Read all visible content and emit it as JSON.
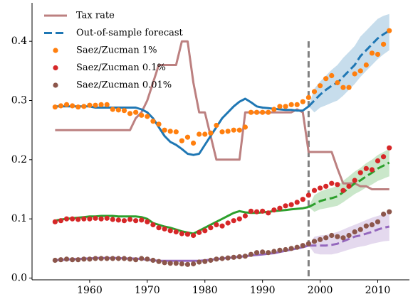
{
  "chart_data": {
    "type": "line",
    "x": [
      1954,
      1955,
      1956,
      1957,
      1958,
      1959,
      1960,
      1961,
      1962,
      1963,
      1964,
      1965,
      1966,
      1967,
      1968,
      1969,
      1970,
      1971,
      1972,
      1973,
      1974,
      1975,
      1976,
      1977,
      1978,
      1979,
      1980,
      1981,
      1982,
      1983,
      1984,
      1985,
      1986,
      1987,
      1988,
      1989,
      1990,
      1991,
      1992,
      1993,
      1994,
      1995,
      1996,
      1997,
      1998,
      1999,
      2000,
      2001,
      2002,
      2003,
      2004,
      2005,
      2006,
      2007,
      2008,
      2009,
      2010,
      2011,
      2012
    ],
    "xlim": [
      1950,
      2015.5
    ],
    "ylim": [
      -0.003,
      0.465
    ],
    "xticks": [
      1960,
      1970,
      1980,
      1990,
      2000,
      2010
    ],
    "yticks": [
      {
        "value": 0,
        "label": "0.0"
      },
      0.1,
      0.2,
      0.3,
      0.4
    ],
    "legend": "upper left",
    "vline": {
      "x": 1998,
      "ymax": 0.4,
      "color": "#808080"
    },
    "series": [
      {
        "name": "Tax rate",
        "kind": "line",
        "color": "#bc8080",
        "values": [
          0.25,
          0.25,
          0.25,
          0.25,
          0.25,
          0.25,
          0.25,
          0.25,
          0.25,
          0.25,
          0.25,
          0.25,
          0.25,
          0.25,
          0.27,
          0.28,
          0.3,
          0.33,
          0.36,
          0.36,
          0.36,
          0.36,
          0.4,
          0.4,
          0.33,
          0.28,
          0.28,
          0.24,
          0.2,
          0.2,
          0.2,
          0.2,
          0.2,
          0.28,
          0.28,
          0.28,
          0.28,
          0.28,
          0.28,
          0.28,
          0.28,
          0.28,
          0.285,
          0.28,
          0.213,
          0.213,
          0.213,
          0.213,
          0.213,
          0.185,
          0.16,
          0.16,
          0.16,
          0.155,
          0.155,
          0.15,
          0.15,
          0.15,
          0.15
        ]
      },
      {
        "name": "Out-of-sample forecast",
        "kind": "forecast",
        "color": "#1f77b4",
        "band": "rgba(31,119,180,0.25)",
        "values": [
          null,
          null,
          null,
          null,
          null,
          null,
          null,
          null,
          null,
          null,
          null,
          null,
          null,
          null,
          null,
          null,
          null,
          null,
          null,
          null,
          null,
          null,
          null,
          null,
          null,
          null,
          null,
          null,
          null,
          null,
          null,
          null,
          null,
          null,
          null,
          null,
          null,
          null,
          null,
          null,
          null,
          null,
          null,
          null,
          0.29,
          0.3,
          0.31,
          0.318,
          0.325,
          0.33,
          0.34,
          0.35,
          0.36,
          0.375,
          0.385,
          0.395,
          0.405,
          0.412,
          0.418
        ],
        "lower": [
          null,
          null,
          null,
          null,
          null,
          null,
          null,
          null,
          null,
          null,
          null,
          null,
          null,
          null,
          null,
          null,
          null,
          null,
          null,
          null,
          null,
          null,
          null,
          null,
          null,
          null,
          null,
          null,
          null,
          null,
          null,
          null,
          null,
          null,
          null,
          null,
          null,
          null,
          null,
          null,
          null,
          null,
          null,
          null,
          0.29,
          0.28,
          0.288,
          0.292,
          0.296,
          0.3,
          0.308,
          0.318,
          0.328,
          0.34,
          0.35,
          0.36,
          0.37,
          0.378,
          0.385
        ],
        "upper": [
          null,
          null,
          null,
          null,
          null,
          null,
          null,
          null,
          null,
          null,
          null,
          null,
          null,
          null,
          null,
          null,
          null,
          null,
          null,
          null,
          null,
          null,
          null,
          null,
          null,
          null,
          null,
          null,
          null,
          null,
          null,
          null,
          null,
          null,
          null,
          null,
          null,
          null,
          null,
          null,
          null,
          null,
          null,
          null,
          0.29,
          0.32,
          0.332,
          0.342,
          0.352,
          0.36,
          0.372,
          0.382,
          0.392,
          0.408,
          0.418,
          0.428,
          0.438,
          0.443,
          0.446
        ]
      },
      {
        "name": "Saez/Zucman 1%",
        "kind": "scatter",
        "color": "#ff7f0e",
        "values": [
          0.289,
          0.291,
          0.293,
          0.291,
          0.289,
          0.29,
          0.292,
          0.292,
          0.293,
          0.293,
          0.285,
          0.284,
          0.283,
          0.278,
          0.28,
          0.275,
          0.273,
          0.265,
          0.26,
          0.25,
          0.248,
          0.247,
          0.232,
          0.238,
          0.228,
          0.243,
          0.243,
          0.245,
          0.258,
          0.247,
          0.248,
          0.25,
          0.25,
          0.255,
          0.28,
          0.28,
          0.28,
          0.28,
          0.285,
          0.29,
          0.29,
          0.293,
          0.293,
          0.298,
          0.305,
          0.315,
          0.325,
          0.337,
          0.342,
          0.33,
          0.322,
          0.322,
          0.345,
          0.35,
          0.36,
          0.38,
          0.378,
          0.395,
          0.418
        ]
      },
      {
        "name": "Saez/Zucman 0.1%",
        "kind": "scatter",
        "color": "#d62728",
        "values": [
          0.095,
          0.097,
          0.1,
          0.1,
          0.099,
          0.1,
          0.1,
          0.101,
          0.1,
          0.101,
          0.099,
          0.098,
          0.097,
          0.099,
          0.097,
          0.098,
          0.095,
          0.09,
          0.085,
          0.083,
          0.08,
          0.078,
          0.075,
          0.074,
          0.072,
          0.077,
          0.08,
          0.085,
          0.09,
          0.088,
          0.093,
          0.097,
          0.1,
          0.105,
          0.113,
          0.112,
          0.113,
          0.11,
          0.115,
          0.118,
          0.122,
          0.124,
          0.128,
          0.133,
          0.14,
          0.148,
          0.152,
          0.155,
          0.16,
          0.158,
          0.148,
          0.155,
          0.165,
          0.178,
          0.185,
          0.183,
          0.198,
          0.205,
          0.22
        ]
      },
      {
        "name": "Saez/Zucman 0.01%",
        "kind": "scatter",
        "color": "#8c564b",
        "values": [
          0.03,
          0.031,
          0.032,
          0.031,
          0.031,
          0.032,
          0.032,
          0.033,
          0.033,
          0.033,
          0.033,
          0.033,
          0.033,
          0.032,
          0.031,
          0.033,
          0.032,
          0.03,
          0.028,
          0.026,
          0.025,
          0.025,
          0.024,
          0.023,
          0.024,
          0.027,
          0.028,
          0.03,
          0.032,
          0.033,
          0.034,
          0.035,
          0.036,
          0.037,
          0.04,
          0.043,
          0.044,
          0.043,
          0.045,
          0.047,
          0.048,
          0.05,
          0.052,
          0.055,
          0.058,
          0.062,
          0.065,
          0.068,
          0.072,
          0.07,
          0.068,
          0.072,
          0.078,
          0.082,
          0.088,
          0.09,
          0.095,
          0.108,
          0.112
        ]
      },
      {
        "kind": "line",
        "color": "#1f77b4",
        "values": [
          0.29,
          0.29,
          0.29,
          0.29,
          0.29,
          0.29,
          0.29,
          0.288,
          0.288,
          0.288,
          0.288,
          0.288,
          0.288,
          0.288,
          0.288,
          0.285,
          0.28,
          0.27,
          0.255,
          0.24,
          0.23,
          0.225,
          0.218,
          0.21,
          0.208,
          0.21,
          0.225,
          0.24,
          0.255,
          0.27,
          0.28,
          0.29,
          0.298,
          0.303,
          0.297,
          0.29,
          0.288,
          0.287,
          0.286,
          0.285,
          0.284,
          0.284,
          0.283,
          0.283,
          0.29,
          null,
          null,
          null,
          null,
          null,
          null,
          null,
          null,
          null,
          null,
          null,
          null,
          null,
          null
        ]
      },
      {
        "kind": "line",
        "color": "#2ca02c",
        "values": [
          0.097,
          0.099,
          0.1,
          0.101,
          0.102,
          0.103,
          0.104,
          0.104,
          0.105,
          0.105,
          0.105,
          0.104,
          0.104,
          0.104,
          0.104,
          0.103,
          0.1,
          0.093,
          0.09,
          0.087,
          0.085,
          0.082,
          0.079,
          0.077,
          0.075,
          0.08,
          0.085,
          0.09,
          0.095,
          0.1,
          0.105,
          0.11,
          0.113,
          0.111,
          0.11,
          0.11,
          0.111,
          0.112,
          0.113,
          0.114,
          0.115,
          0.116,
          0.117,
          0.118,
          0.12,
          null,
          null,
          null,
          null,
          null,
          null,
          null,
          null,
          null,
          null,
          null,
          null,
          null,
          null
        ]
      },
      {
        "kind": "forecast",
        "color": "#2ca02c",
        "band": "rgba(44,160,44,0.25)",
        "values": [
          null,
          null,
          null,
          null,
          null,
          null,
          null,
          null,
          null,
          null,
          null,
          null,
          null,
          null,
          null,
          null,
          null,
          null,
          null,
          null,
          null,
          null,
          null,
          null,
          null,
          null,
          null,
          null,
          null,
          null,
          null,
          null,
          null,
          null,
          null,
          null,
          null,
          null,
          null,
          null,
          null,
          null,
          null,
          null,
          0.12,
          0.125,
          0.13,
          0.133,
          0.135,
          0.138,
          0.145,
          0.152,
          0.16,
          0.165,
          0.172,
          0.178,
          0.185,
          0.19,
          0.195
        ],
        "lower": [
          null,
          null,
          null,
          null,
          null,
          null,
          null,
          null,
          null,
          null,
          null,
          null,
          null,
          null,
          null,
          null,
          null,
          null,
          null,
          null,
          null,
          null,
          null,
          null,
          null,
          null,
          null,
          null,
          null,
          null,
          null,
          null,
          null,
          null,
          null,
          null,
          null,
          null,
          null,
          null,
          null,
          null,
          null,
          null,
          0.12,
          0.112,
          0.116,
          0.118,
          0.12,
          0.122,
          0.128,
          0.135,
          0.142,
          0.147,
          0.153,
          0.158,
          0.164,
          0.168,
          0.172
        ],
        "upper": [
          null,
          null,
          null,
          null,
          null,
          null,
          null,
          null,
          null,
          null,
          null,
          null,
          null,
          null,
          null,
          null,
          null,
          null,
          null,
          null,
          null,
          null,
          null,
          null,
          null,
          null,
          null,
          null,
          null,
          null,
          null,
          null,
          null,
          null,
          null,
          null,
          null,
          null,
          null,
          null,
          null,
          null,
          null,
          null,
          0.12,
          0.14,
          0.146,
          0.15,
          0.152,
          0.156,
          0.164,
          0.172,
          0.18,
          0.186,
          0.194,
          0.2,
          0.208,
          0.213,
          0.218
        ]
      },
      {
        "kind": "line",
        "color": "#9467bd",
        "values": [
          0.03,
          0.031,
          0.031,
          0.032,
          0.032,
          0.033,
          0.033,
          0.034,
          0.034,
          0.034,
          0.034,
          0.034,
          0.033,
          0.033,
          0.033,
          0.032,
          0.031,
          0.03,
          0.029,
          0.029,
          0.029,
          0.029,
          0.029,
          0.029,
          0.029,
          0.029,
          0.03,
          0.031,
          0.032,
          0.033,
          0.034,
          0.035,
          0.036,
          0.037,
          0.038,
          0.039,
          0.04,
          0.041,
          0.042,
          0.044,
          0.046,
          0.048,
          0.05,
          0.052,
          0.055,
          null,
          null,
          null,
          null,
          null,
          null,
          null,
          null,
          null,
          null,
          null,
          null,
          null,
          null
        ]
      },
      {
        "kind": "forecast",
        "color": "#9467bd",
        "band": "rgba(148,103,189,0.25)",
        "values": [
          null,
          null,
          null,
          null,
          null,
          null,
          null,
          null,
          null,
          null,
          null,
          null,
          null,
          null,
          null,
          null,
          null,
          null,
          null,
          null,
          null,
          null,
          null,
          null,
          null,
          null,
          null,
          null,
          null,
          null,
          null,
          null,
          null,
          null,
          null,
          null,
          null,
          null,
          null,
          null,
          null,
          null,
          null,
          null,
          0.055,
          0.055,
          0.055,
          0.055,
          0.056,
          0.058,
          0.062,
          0.066,
          0.07,
          0.072,
          0.075,
          0.078,
          0.082,
          0.085,
          0.087
        ],
        "lower": [
          null,
          null,
          null,
          null,
          null,
          null,
          null,
          null,
          null,
          null,
          null,
          null,
          null,
          null,
          null,
          null,
          null,
          null,
          null,
          null,
          null,
          null,
          null,
          null,
          null,
          null,
          null,
          null,
          null,
          null,
          null,
          null,
          null,
          null,
          null,
          null,
          null,
          null,
          null,
          null,
          null,
          null,
          null,
          null,
          0.055,
          0.042,
          0.04,
          0.04,
          0.04,
          0.042,
          0.045,
          0.048,
          0.051,
          0.053,
          0.055,
          0.058,
          0.06,
          0.062,
          0.063
        ],
        "upper": [
          null,
          null,
          null,
          null,
          null,
          null,
          null,
          null,
          null,
          null,
          null,
          null,
          null,
          null,
          null,
          null,
          null,
          null,
          null,
          null,
          null,
          null,
          null,
          null,
          null,
          null,
          null,
          null,
          null,
          null,
          null,
          null,
          null,
          null,
          null,
          null,
          null,
          null,
          null,
          null,
          null,
          null,
          null,
          null,
          0.055,
          0.07,
          0.072,
          0.073,
          0.075,
          0.078,
          0.082,
          0.086,
          0.09,
          0.094,
          0.098,
          0.102,
          0.105,
          0.108,
          0.11
        ]
      }
    ]
  }
}
